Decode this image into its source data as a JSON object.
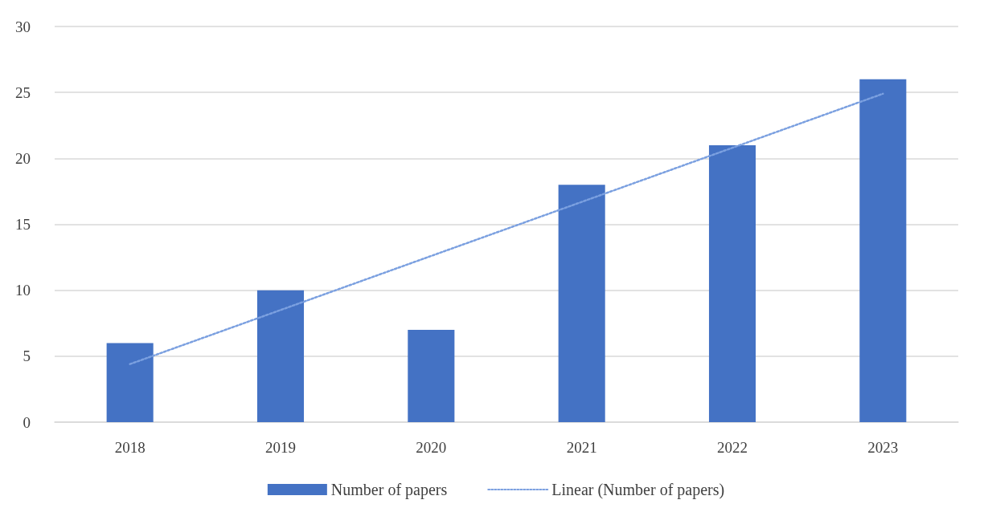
{
  "chart_data": {
    "type": "bar",
    "categories": [
      "2018",
      "2019",
      "2020",
      "2021",
      "2022",
      "2023"
    ],
    "series": [
      {
        "name": "Number of papers",
        "color": "#4472c4",
        "values": [
          6,
          10,
          7,
          18,
          21,
          26
        ]
      },
      {
        "name": "Linear (Number of papers)",
        "type": "line",
        "color": "#7ba0e0",
        "line_style": "dotted",
        "marker": "none",
        "values": [
          4.4,
          8.5,
          12.6,
          16.7,
          20.8,
          24.9
        ]
      }
    ],
    "ylim": [
      0,
      30
    ],
    "yticks": [
      0,
      5,
      10,
      15,
      20,
      25,
      30
    ],
    "grid": "y",
    "legend": "bottom"
  }
}
